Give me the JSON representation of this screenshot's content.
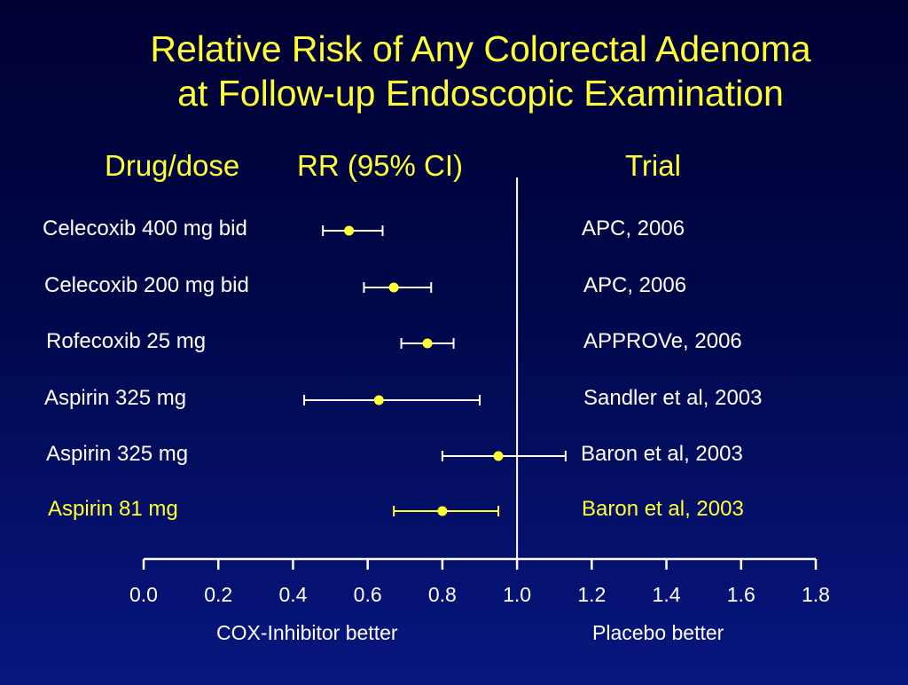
{
  "colors": {
    "background": "#000033",
    "title": "#ffff33",
    "text": "#ffffff",
    "highlight": "#ffff33",
    "point": "#ffff33"
  },
  "chart_data": {
    "type": "forest",
    "title": "Relative Risk of Any Colorectal Adenoma at Follow-up Endoscopic Examination",
    "title_lines": [
      "Relative Risk of Any Colorectal Adenoma",
      "at Follow-up Endoscopic Examination"
    ],
    "column_headers": {
      "drug": "Drug/dose",
      "rr": "RR (95% CI)",
      "trial": "Trial"
    },
    "rows": [
      {
        "drug": "Celecoxib 400 mg bid",
        "trial": "APC, 2006",
        "rr": 0.55,
        "ci_low": 0.48,
        "ci_high": 0.64,
        "highlight": false
      },
      {
        "drug": "Celecoxib 200 mg bid",
        "trial": "APC, 2006",
        "rr": 0.67,
        "ci_low": 0.59,
        "ci_high": 0.77,
        "highlight": false
      },
      {
        "drug": "Rofecoxib 25 mg",
        "trial": "APPROVe, 2006",
        "rr": 0.76,
        "ci_low": 0.69,
        "ci_high": 0.83,
        "highlight": false
      },
      {
        "drug": "Aspirin 325 mg",
        "trial": "Sandler et al, 2003",
        "rr": 0.63,
        "ci_low": 0.43,
        "ci_high": 0.9,
        "highlight": false
      },
      {
        "drug": "Aspirin 325 mg",
        "trial": "Baron et al, 2003",
        "rr": 0.95,
        "ci_low": 0.8,
        "ci_high": 1.13,
        "highlight": false
      },
      {
        "drug": "Aspirin 81 mg",
        "trial": "Baron et al, 2003",
        "rr": 0.8,
        "ci_low": 0.67,
        "ci_high": 0.95,
        "highlight": true
      }
    ],
    "x_ticks": [
      "0.0",
      "0.2",
      "0.4",
      "0.6",
      "0.8",
      "1.0",
      "1.2",
      "1.4",
      "1.6",
      "1.8"
    ],
    "xlim": [
      0,
      1.8
    ],
    "reference_line": 1.0,
    "left_note": "COX-Inhibitor better",
    "right_note": "Placebo better"
  }
}
